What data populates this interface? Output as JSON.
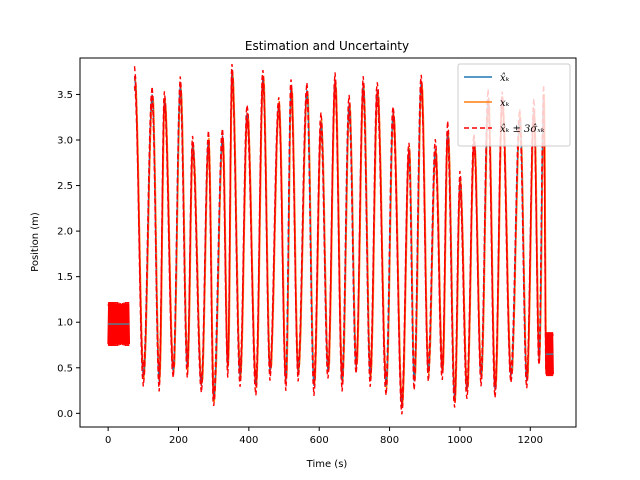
{
  "chart_data": {
    "type": "line",
    "title": "Estimation and Uncertainty",
    "xlabel": "Time (s)",
    "ylabel": "Position (m)",
    "xlim": [
      -80,
      1330
    ],
    "ylim": [
      -0.15,
      3.9
    ],
    "xticks": [
      0,
      200,
      400,
      600,
      800,
      1000,
      1200
    ],
    "yticks": [
      0.0,
      0.5,
      1.0,
      1.5,
      2.0,
      2.5,
      3.0,
      3.5
    ],
    "xtick_labels": [
      "0",
      "200",
      "400",
      "600",
      "800",
      "1000",
      "1200"
    ],
    "ytick_labels": [
      "0.0",
      "0.5",
      "1.0",
      "1.5",
      "2.0",
      "2.5",
      "3.0",
      "3.5"
    ],
    "grid": false,
    "legend_position": "top-right",
    "colors": {
      "estimate": "#1f77b4",
      "truth": "#ff7f0e",
      "bounds": "#ff0000"
    },
    "segments": [
      {
        "x_start": 0,
        "x_end": 60,
        "level": 0.98,
        "band": 0.22,
        "kind": "static"
      },
      {
        "x_start": 60,
        "x_end": 1245,
        "kind": "oscillating",
        "peaks": [
          [
            75,
            3.7
          ],
          [
            100,
            0.4
          ],
          [
            125,
            3.5
          ],
          [
            145,
            0.35
          ],
          [
            160,
            3.45
          ],
          [
            185,
            0.45
          ],
          [
            205,
            3.6
          ],
          [
            225,
            0.5
          ],
          [
            240,
            2.95
          ],
          [
            265,
            0.3
          ],
          [
            285,
            3.0
          ],
          [
            300,
            0.15
          ],
          [
            325,
            3.05
          ],
          [
            340,
            0.5
          ],
          [
            352,
            3.75
          ],
          [
            375,
            0.4
          ],
          [
            395,
            3.3
          ],
          [
            420,
            0.3
          ],
          [
            440,
            3.7
          ],
          [
            460,
            0.45
          ],
          [
            485,
            3.4
          ],
          [
            505,
            0.35
          ],
          [
            520,
            3.6
          ],
          [
            540,
            0.45
          ],
          [
            565,
            3.55
          ],
          [
            585,
            0.3
          ],
          [
            605,
            3.2
          ],
          [
            625,
            0.45
          ],
          [
            645,
            3.65
          ],
          [
            665,
            0.35
          ],
          [
            685,
            3.4
          ],
          [
            705,
            0.5
          ],
          [
            725,
            3.6
          ],
          [
            745,
            0.4
          ],
          [
            765,
            3.55
          ],
          [
            790,
            0.3
          ],
          [
            810,
            3.3
          ],
          [
            835,
            0.08
          ],
          [
            855,
            2.9
          ],
          [
            870,
            0.35
          ],
          [
            890,
            3.65
          ],
          [
            910,
            0.45
          ],
          [
            930,
            2.9
          ],
          [
            950,
            0.45
          ],
          [
            965,
            3.1
          ],
          [
            985,
            0.15
          ],
          [
            1000,
            2.55
          ],
          [
            1020,
            0.25
          ],
          [
            1040,
            3.0
          ],
          [
            1060,
            0.4
          ],
          [
            1080,
            3.45
          ],
          [
            1100,
            0.25
          ],
          [
            1120,
            3.45
          ],
          [
            1145,
            0.4
          ],
          [
            1170,
            3.25
          ],
          [
            1190,
            0.35
          ],
          [
            1210,
            3.35
          ],
          [
            1225,
            0.6
          ],
          [
            1238,
            3.5
          ],
          [
            1245,
            0.45
          ]
        ]
      },
      {
        "x_start": 1245,
        "x_end": 1265,
        "level": 0.65,
        "band": 0.22,
        "kind": "static"
      }
    ]
  },
  "legend": {
    "estimate": "x̂ₖ",
    "truth": "xₖ",
    "bounds": "x̂ₖ ± 3σ̂ₓₖ"
  }
}
